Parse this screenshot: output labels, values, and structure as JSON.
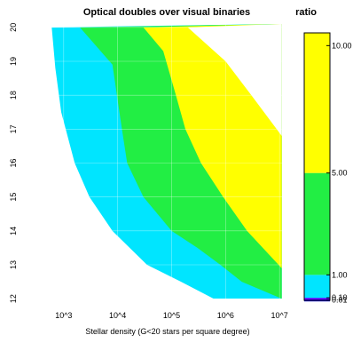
{
  "chart_data": {
    "type": "area",
    "title": "Optical doubles over visual binaries",
    "xlabel": "Stellar density (G<20 stars per square degree)",
    "ylabel": "",
    "y_axis_mark": "-",
    "x_scale": "log10",
    "x_ticks": [
      {
        "value": 1000,
        "label": "10^3"
      },
      {
        "value": 10000,
        "label": "10^4"
      },
      {
        "value": 100000,
        "label": "10^5"
      },
      {
        "value": 1000000,
        "label": "10^6"
      },
      {
        "value": 10000000,
        "label": "10^7"
      }
    ],
    "y_ticks": [
      12,
      13,
      14,
      15,
      16,
      17,
      18,
      19,
      20
    ],
    "xlim": [
      300,
      12000000
    ],
    "ylim": [
      11.9,
      20.1
    ],
    "grid": true,
    "contour_boundaries": [
      {
        "level": 0.01,
        "points": [
          [
            11000000,
            12.0
          ]
        ]
      },
      {
        "level": 0.1,
        "points": [
          [
            600,
            20.0
          ],
          [
            700,
            18.8
          ],
          [
            900,
            17.5
          ],
          [
            1600,
            16.0
          ],
          [
            3000,
            15.0
          ],
          [
            8000,
            14.0
          ],
          [
            35000,
            13.0
          ],
          [
            150000,
            12.5
          ],
          [
            600000,
            12.0
          ],
          [
            11000000,
            12.0
          ]
        ]
      },
      {
        "level": 1.0,
        "points": [
          [
            2000,
            20.0
          ],
          [
            8000,
            18.9
          ],
          [
            12000,
            17.0
          ],
          [
            15000,
            16.0
          ],
          [
            30000,
            15.0
          ],
          [
            100000,
            14.0
          ],
          [
            300000,
            13.5
          ],
          [
            800000,
            13.0
          ],
          [
            2000000,
            12.5
          ],
          [
            11000000,
            12.0
          ]
        ]
      },
      {
        "level": 5.0,
        "points": [
          [
            30000,
            20.0
          ],
          [
            70000,
            19.3
          ],
          [
            120000,
            18.0
          ],
          [
            180000,
            17.0
          ],
          [
            350000,
            16.0
          ],
          [
            900000,
            15.0
          ],
          [
            2500000,
            14.0
          ],
          [
            11000000,
            12.9
          ]
        ]
      },
      {
        "level": 10.0,
        "points": [
          [
            200000,
            20.0
          ],
          [
            1000000,
            19.0
          ],
          [
            3000000,
            18.0
          ],
          [
            11000000,
            16.8
          ]
        ]
      }
    ],
    "colorbar": {
      "title": "ratio",
      "range": [
        0,
        10.5
      ],
      "bands": [
        {
          "from": 0,
          "to": 0.01,
          "color": "#1a1ae6"
        },
        {
          "from": 0.01,
          "to": 0.1,
          "color": "#5a00ff"
        },
        {
          "from": 0.1,
          "to": 1.0,
          "color": "#00e5ff"
        },
        {
          "from": 1.0,
          "to": 5.0,
          "color": "#22ee44"
        },
        {
          "from": 5.0,
          "to": 10.5,
          "color": "#ffff00"
        }
      ],
      "tick_values": [
        0.01,
        0.1,
        1.0,
        5.0,
        10.0
      ],
      "tick_labels": [
        "0.01",
        "0.10",
        "1.00",
        "5.00",
        "10.00"
      ]
    }
  }
}
